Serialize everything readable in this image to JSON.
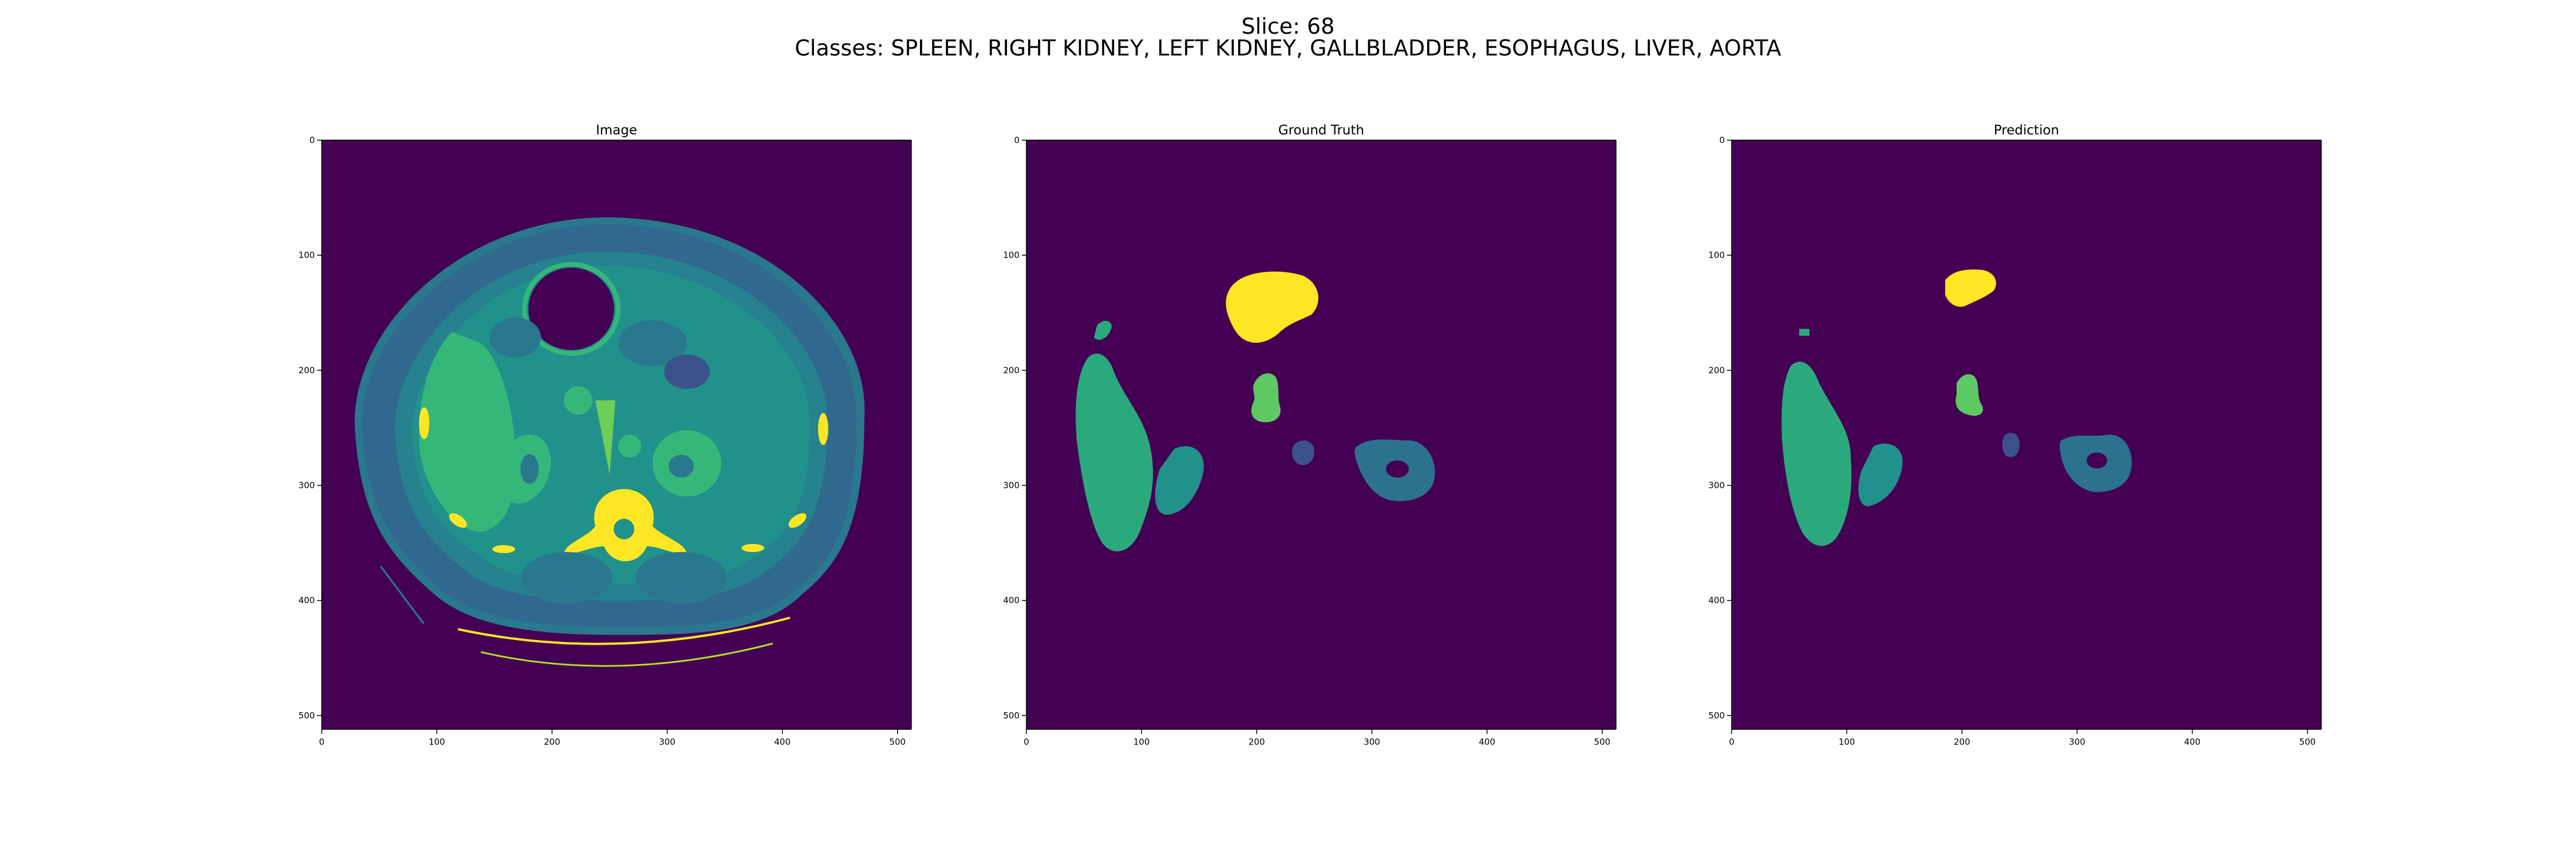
{
  "figure": {
    "suptitle_line1": "Slice: 68",
    "suptitle_line2": "Classes: SPLEEN, RIGHT KIDNEY, LEFT KIDNEY, GALLBLADDER, ESOPHAGUS, LIVER, AORTA"
  },
  "colormap": {
    "name": "viridis",
    "background": "#440154",
    "spleen": "#2ba97d",
    "right_kidney": "#21918c",
    "left_kidney": "#2c728e",
    "gallbladder": "#5ec962",
    "esophagus": "#3b528b",
    "liver": "#fde725",
    "ct_tissue": "#21918c",
    "ct_bone": "#fde725"
  },
  "axes": {
    "x_ticks": [
      "0",
      "100",
      "200",
      "300",
      "400",
      "500"
    ],
    "y_ticks": [
      "0",
      "100",
      "200",
      "300",
      "400",
      "500"
    ]
  },
  "panels": [
    {
      "title": "Image"
    },
    {
      "title": "Ground Truth"
    },
    {
      "title": "Prediction"
    }
  ]
}
